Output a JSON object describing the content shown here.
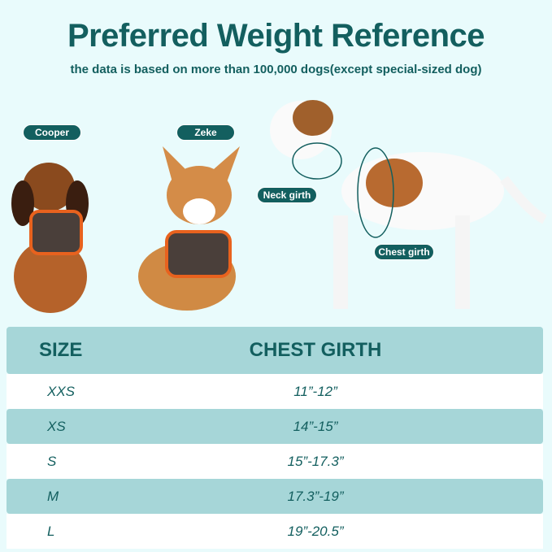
{
  "header": {
    "title": "Preferred Weight Reference",
    "subtitle": "the data is based on more than 100,000 dogs(except special-sized dog)"
  },
  "dogs": {
    "labels": [
      "Cooper",
      "Zeke"
    ],
    "measure_labels": {
      "neck": "Neck girth",
      "chest": "Chest girth"
    }
  },
  "table": {
    "headers": [
      "SIZE",
      "CHEST GIRTH"
    ],
    "rows": [
      {
        "size": "XXS",
        "chest": "11”-12”"
      },
      {
        "size": "XS",
        "chest": "14”-15”"
      },
      {
        "size": "S",
        "chest": "15”-17.3”"
      },
      {
        "size": "M",
        "chest": "17.3”-19”"
      },
      {
        "size": "L",
        "chest": "19”-20.5”"
      }
    ]
  },
  "colors": {
    "background": "#e9fbfc",
    "accent": "#135f5f",
    "row_shade": "#a6d6d8"
  }
}
